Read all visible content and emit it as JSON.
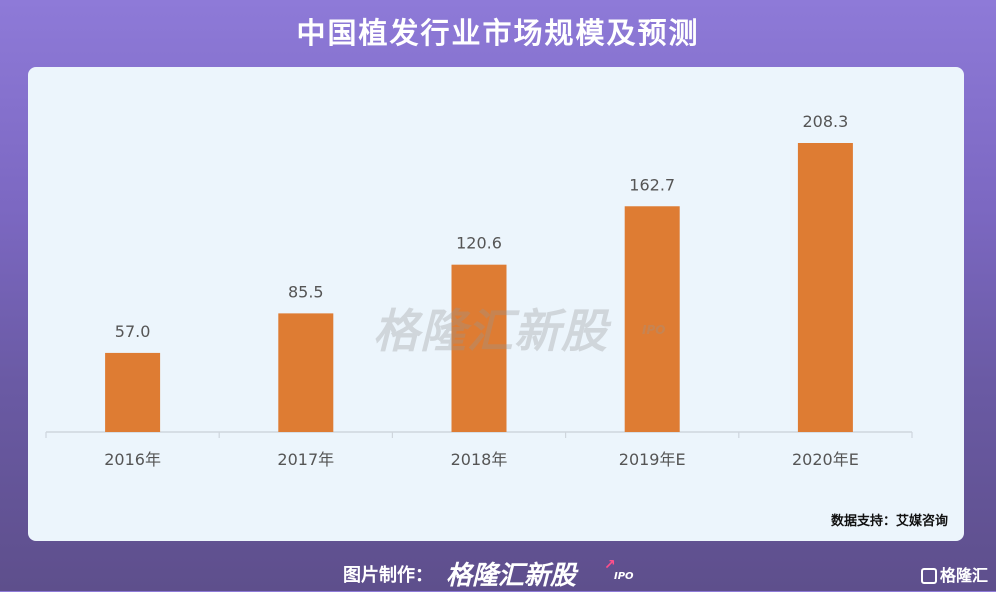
{
  "title": "中国植发行业市场规模及预测",
  "watermark": {
    "text": "格隆汇新股",
    "sub": "IPO"
  },
  "source": "数据支持：艾媒咨询",
  "footer": {
    "credit_label": "图片制作：",
    "brand": "格隆汇新股",
    "brand_sub": "IPO",
    "corner_logo": "格隆汇"
  },
  "colors": {
    "bar": "#de7c33",
    "axis": "#cfd6dd",
    "label": "#555555"
  },
  "chart_data": {
    "type": "bar",
    "categories": [
      "2016年",
      "2017年",
      "2018年",
      "2019年E",
      "2020年E"
    ],
    "values": [
      57.0,
      85.5,
      120.6,
      162.7,
      208.3
    ],
    "value_labels": [
      "57.0",
      "85.5",
      "120.6",
      "162.7",
      "208.3"
    ],
    "title": "中国植发行业市场规模及预测",
    "xlabel": "",
    "ylabel": "",
    "ylim": [
      0,
      208.3
    ],
    "grid": false
  }
}
